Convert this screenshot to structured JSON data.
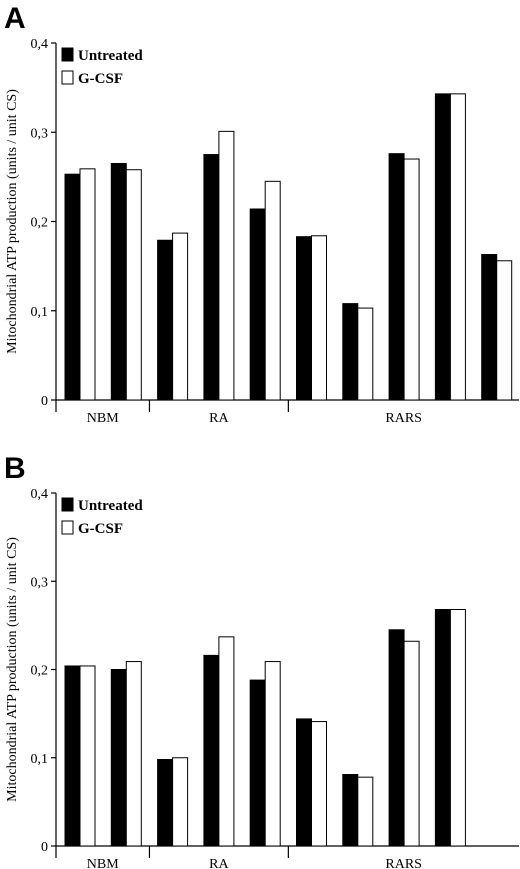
{
  "colors": {
    "untreated": "#000000",
    "gcsf": "#ffffff",
    "outline": "#000000"
  },
  "chart_data": [
    {
      "panel": "A",
      "type": "bar",
      "ylabel": "Mitochondrial ATP production (units / unit CS)",
      "ylim": [
        0,
        0.4
      ],
      "yticks": [
        "0",
        "0,1",
        "0,2",
        "0,3",
        "0,4"
      ],
      "legend_position": "top-left",
      "series": [
        {
          "name": "Untreated",
          "values": [
            0.253,
            0.265,
            0.179,
            0.275,
            0.214,
            0.183,
            0.108,
            0.276,
            0.343,
            0.163
          ]
        },
        {
          "name": "G-CSF",
          "values": [
            0.259,
            0.258,
            0.187,
            0.301,
            0.245,
            0.184,
            0.103,
            0.27,
            0.343,
            0.156
          ]
        }
      ],
      "groups": [
        {
          "label": "NBM",
          "count": 2
        },
        {
          "label": "RA",
          "count": 3
        },
        {
          "label": "RARS",
          "count": 5
        }
      ]
    },
    {
      "panel": "B",
      "type": "bar",
      "ylabel": "Mitochondrial ATP production (units / unit CS)",
      "ylim": [
        0,
        0.4
      ],
      "yticks": [
        "0",
        "0,1",
        "0,2",
        "0,3",
        "0,4"
      ],
      "legend_position": "top-left",
      "series": [
        {
          "name": "Untreated",
          "values": [
            0.204,
            0.2,
            0.098,
            0.216,
            0.188,
            0.144,
            0.081,
            0.245,
            0.268
          ]
        },
        {
          "name": "G-CSF",
          "values": [
            0.204,
            0.209,
            0.1,
            0.237,
            0.209,
            0.141,
            0.078,
            0.232,
            0.268
          ]
        }
      ],
      "groups": [
        {
          "label": "NBM",
          "count": 2
        },
        {
          "label": "RA",
          "count": 3
        },
        {
          "label": "RARS",
          "count": 4
        }
      ]
    }
  ]
}
